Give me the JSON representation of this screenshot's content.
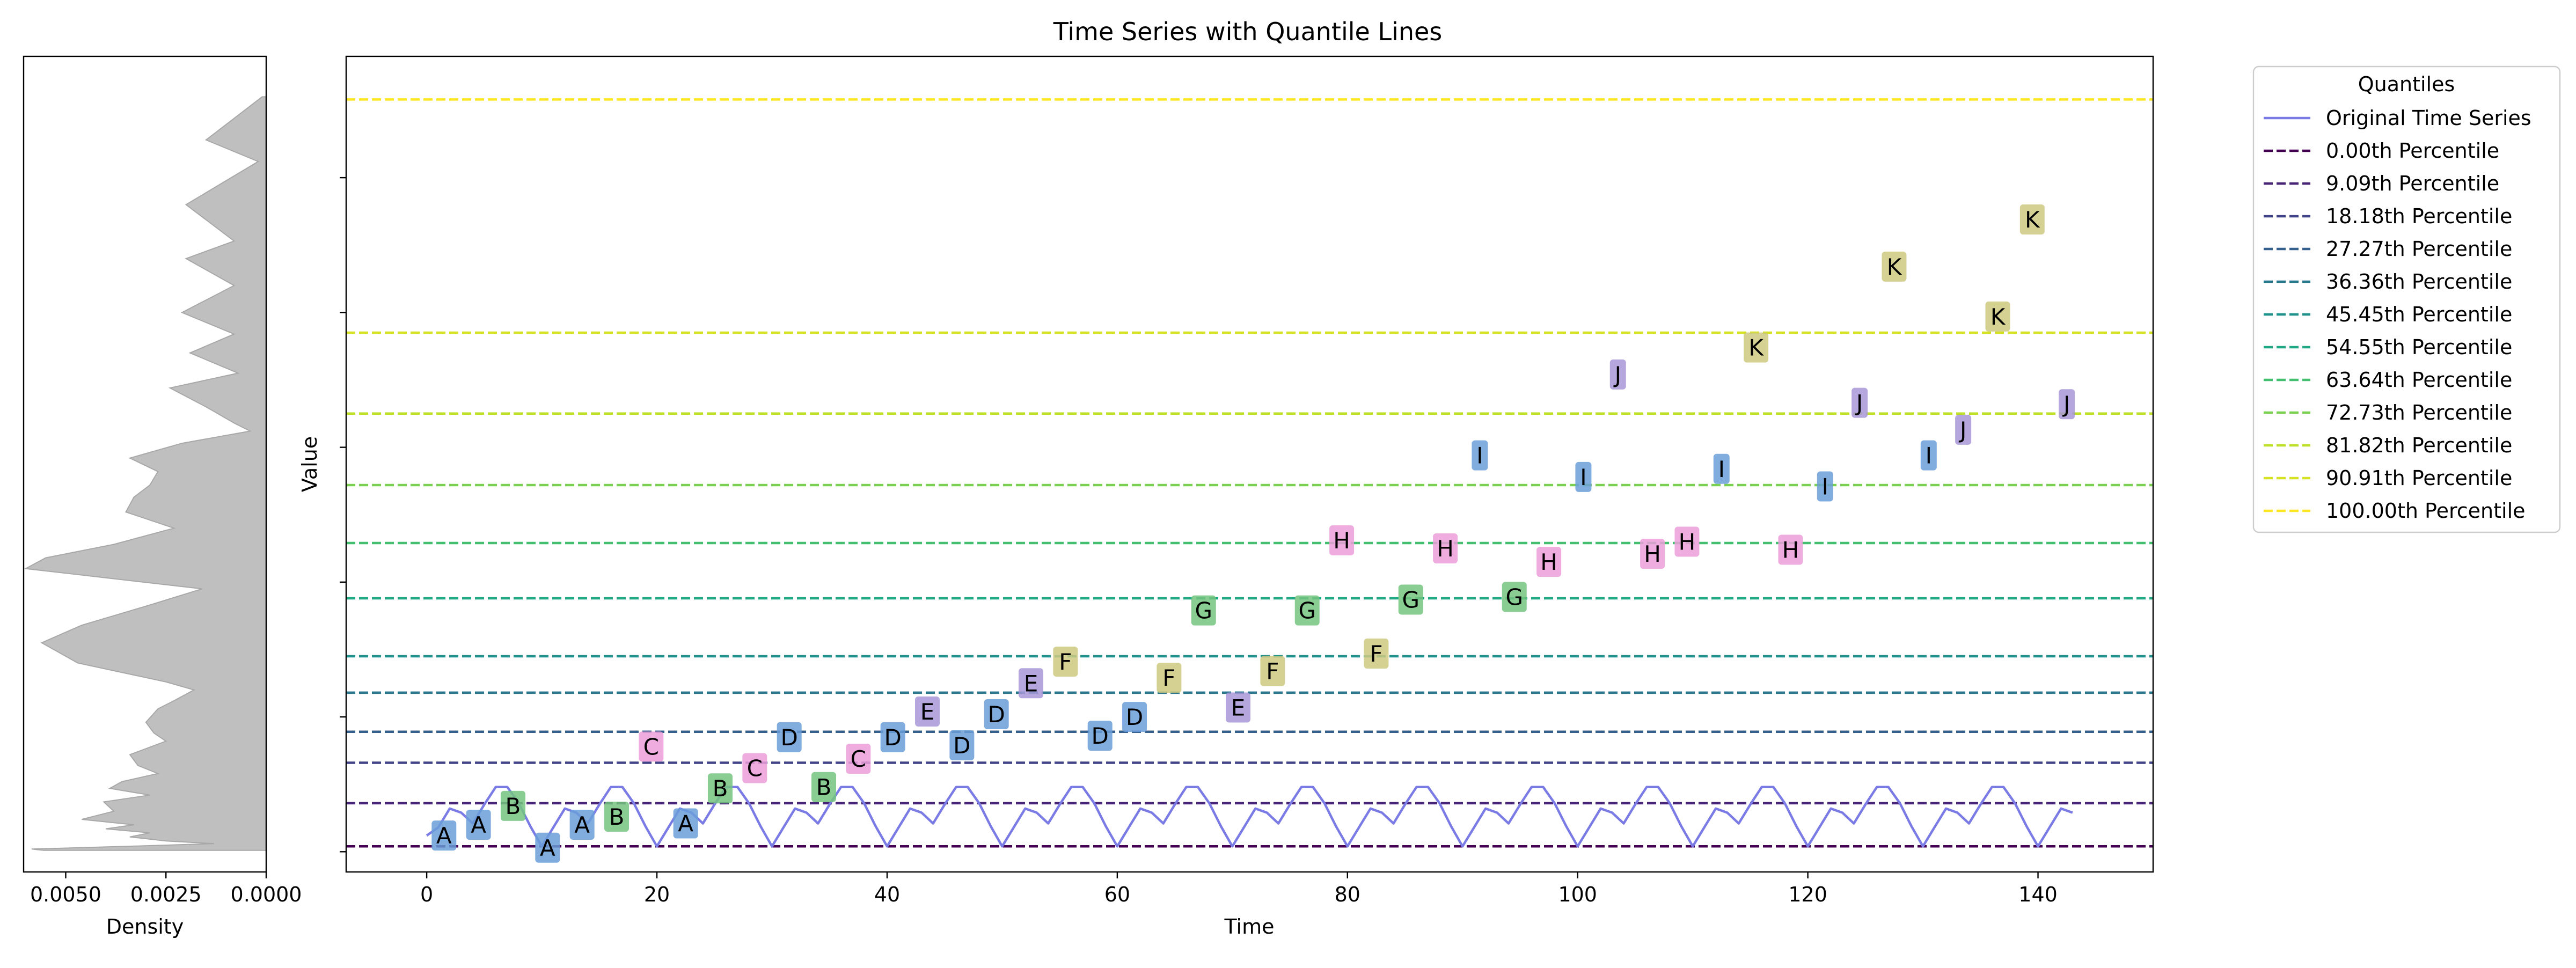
{
  "chart_data": [
    {
      "type": "area",
      "panel": "density-marginal",
      "xlabel": "Density",
      "ylabel": "",
      "x_ticks": [
        "0.0050",
        "0.0025",
        "0.0000"
      ],
      "x_tick_values": [
        0.005,
        0.0025,
        0.0
      ],
      "xlim": [
        0.00605,
        0.0
      ],
      "x_inverted": true,
      "fill_color": "#bfbfbf",
      "stroke_color": "#a8a8a8",
      "density": {
        "value": [
          101,
          102,
          104,
          106,
          108,
          111,
          114,
          117,
          120,
          124,
          130,
          137,
          142,
          147,
          152,
          158,
          164,
          172,
          182,
          188,
          196,
          206,
          212,
          220,
          226,
          240,
          255,
          268,
          283,
          295,
          310,
          318,
          328,
          340,
          352,
          363,
          372,
          382,
          392,
          403,
          412,
          418,
          430,
          444,
          455,
          470,
          484,
          500,
          520,
          540,
          553,
          580,
          612,
          628,
          660
        ],
        "density": [
          0.00555,
          0.00585,
          0.0035,
          0.0013,
          0.0025,
          0.0034,
          0.0029,
          0.004,
          0.0033,
          0.0046,
          0.0038,
          0.00405,
          0.0029,
          0.0039,
          0.0036,
          0.0027,
          0.0032,
          0.0034,
          0.0025,
          0.0028,
          0.003,
          0.0027,
          0.0023,
          0.0018,
          0.0025,
          0.0047,
          0.0056,
          0.0046,
          0.0029,
          0.0016,
          0.006,
          0.0055,
          0.0038,
          0.0023,
          0.0035,
          0.0033,
          0.0029,
          0.0027,
          0.0034,
          0.0021,
          0.0004,
          0.0008,
          0.0015,
          0.0024,
          0.0007,
          0.0019,
          0.0008,
          0.0021,
          0.0008,
          0.002,
          0.0008,
          0.002,
          0.0002,
          0.0015,
          0.0001
        ]
      }
    },
    {
      "type": "line",
      "panel": "main",
      "title": "Time Series with Quantile Lines",
      "xlabel": "Time",
      "ylabel": "Value",
      "xlim": [
        -7,
        150
      ],
      "ylim": [
        85,
        690
      ],
      "x_ticks": [
        0,
        20,
        40,
        60,
        80,
        100,
        120,
        140
      ],
      "y_ticks": [
        100,
        200,
        300,
        400,
        500,
        600
      ],
      "legend_title": "Quantiles",
      "legend_position": "outside-right",
      "series": [
        {
          "name": "Original Time Series",
          "color": "#7b7be6",
          "x": [
            0,
            1,
            2,
            3,
            4,
            5,
            6,
            7,
            8,
            9,
            10,
            11,
            12,
            13,
            14,
            15,
            16,
            17,
            18,
            19,
            20,
            21,
            22,
            23,
            24,
            25,
            26,
            27,
            28,
            29,
            30,
            31,
            32,
            33,
            34,
            35,
            36,
            37,
            38,
            39,
            40,
            41,
            42,
            43,
            44,
            45,
            46,
            47,
            48,
            49,
            50,
            51,
            52,
            53,
            54,
            55,
            56,
            57,
            58,
            59,
            60,
            61,
            62,
            63,
            64,
            65,
            66,
            67,
            68,
            69,
            70,
            71,
            72,
            73,
            74,
            75,
            76,
            77,
            78,
            79,
            80,
            81,
            82,
            83,
            84,
            85,
            86,
            87,
            88,
            89,
            90,
            91,
            92,
            93,
            94,
            95,
            96,
            97,
            98,
            99,
            100,
            101,
            102,
            103,
            104,
            105,
            106,
            107,
            108,
            109,
            110,
            111,
            112,
            113,
            114,
            115,
            116,
            117,
            118,
            119,
            120,
            121,
            122,
            123,
            124,
            125,
            126,
            127,
            128,
            129,
            130,
            131,
            132,
            133,
            134,
            135,
            136,
            137,
            138,
            139,
            140,
            141,
            142,
            143
          ],
          "values": [
            112,
            118,
            132,
            129,
            121,
            135,
            148,
            148,
            136,
            119,
            104,
            118,
            132,
            129,
            121,
            135,
            148,
            148,
            136,
            119,
            104,
            118,
            132,
            129,
            121,
            135,
            148,
            148,
            136,
            119,
            104,
            118,
            132,
            129,
            121,
            135,
            148,
            148,
            136,
            119,
            104,
            118,
            132,
            129,
            121,
            135,
            148,
            148,
            136,
            119,
            104,
            118,
            132,
            129,
            121,
            135,
            148,
            148,
            136,
            119,
            104,
            118,
            132,
            129,
            121,
            135,
            148,
            148,
            136,
            119,
            104,
            118,
            132,
            129,
            121,
            135,
            148,
            148,
            136,
            119,
            104,
            118,
            132,
            129,
            121,
            135,
            148,
            148,
            136,
            119,
            104,
            118,
            132,
            129,
            121,
            135,
            148,
            148,
            136,
            119,
            104,
            118,
            132,
            129,
            121,
            135,
            148,
            148,
            136,
            119,
            104,
            118,
            132,
            129,
            121,
            135,
            148,
            148,
            136,
            119,
            104,
            118,
            132,
            129,
            121,
            135,
            148,
            148,
            136,
            119,
            104,
            118,
            132,
            129,
            121,
            135,
            148,
            148,
            136,
            119,
            104,
            118,
            132,
            129
          ]
        }
      ],
      "quantiles": [
        {
          "name": "0.00th Percentile",
          "value": 104,
          "color": "#440154"
        },
        {
          "name": "9.09th Percentile",
          "value": 136,
          "color": "#482475"
        },
        {
          "name": "18.18th Percentile",
          "value": 166,
          "color": "#414487"
        },
        {
          "name": "27.27th Percentile",
          "value": 189,
          "color": "#355f8d"
        },
        {
          "name": "36.36th Percentile",
          "value": 218,
          "color": "#2a788e"
        },
        {
          "name": "45.45th Percentile",
          "value": 245,
          "color": "#21918c"
        },
        {
          "name": "54.55th Percentile",
          "value": 288,
          "color": "#22a884"
        },
        {
          "name": "63.64th Percentile",
          "value": 329,
          "color": "#44bf70"
        },
        {
          "name": "72.73th Percentile",
          "value": 372,
          "color": "#7ad151"
        },
        {
          "name": "81.82th Percentile",
          "value": 425,
          "color": "#bddf26"
        },
        {
          "name": "90.91th Percentile",
          "value": 485,
          "color": "#d6e226"
        },
        {
          "name": "100.00th Percentile",
          "value": 658,
          "color": "#fde725"
        }
      ],
      "annotations": [
        {
          "label": "A",
          "x": 1.5,
          "y": 112
        },
        {
          "label": "A",
          "x": 4.5,
          "y": 120
        },
        {
          "label": "B",
          "x": 7.5,
          "y": 134
        },
        {
          "label": "A",
          "x": 10.5,
          "y": 103
        },
        {
          "label": "A",
          "x": 13.5,
          "y": 120
        },
        {
          "label": "B",
          "x": 16.5,
          "y": 126
        },
        {
          "label": "C",
          "x": 19.5,
          "y": 178
        },
        {
          "label": "A",
          "x": 22.5,
          "y": 121
        },
        {
          "label": "B",
          "x": 25.5,
          "y": 147
        },
        {
          "label": "C",
          "x": 28.5,
          "y": 162
        },
        {
          "label": "D",
          "x": 31.5,
          "y": 185
        },
        {
          "label": "B",
          "x": 34.5,
          "y": 148
        },
        {
          "label": "C",
          "x": 37.5,
          "y": 169
        },
        {
          "label": "D",
          "x": 40.5,
          "y": 185
        },
        {
          "label": "E",
          "x": 43.5,
          "y": 204
        },
        {
          "label": "D",
          "x": 46.5,
          "y": 179
        },
        {
          "label": "D",
          "x": 49.5,
          "y": 202
        },
        {
          "label": "E",
          "x": 52.5,
          "y": 225
        },
        {
          "label": "F",
          "x": 55.5,
          "y": 241
        },
        {
          "label": "D",
          "x": 58.5,
          "y": 186
        },
        {
          "label": "D",
          "x": 61.5,
          "y": 200
        },
        {
          "label": "F",
          "x": 64.5,
          "y": 229
        },
        {
          "label": "G",
          "x": 67.5,
          "y": 279
        },
        {
          "label": "E",
          "x": 70.5,
          "y": 207
        },
        {
          "label": "F",
          "x": 73.5,
          "y": 234
        },
        {
          "label": "G",
          "x": 76.5,
          "y": 279
        },
        {
          "label": "H",
          "x": 79.5,
          "y": 331
        },
        {
          "label": "F",
          "x": 82.5,
          "y": 247
        },
        {
          "label": "G",
          "x": 85.5,
          "y": 287
        },
        {
          "label": "H",
          "x": 88.5,
          "y": 325
        },
        {
          "label": "I",
          "x": 91.5,
          "y": 394
        },
        {
          "label": "G",
          "x": 94.5,
          "y": 289
        },
        {
          "label": "H",
          "x": 97.5,
          "y": 315
        },
        {
          "label": "I",
          "x": 100.5,
          "y": 378
        },
        {
          "label": "J",
          "x": 103.5,
          "y": 454
        },
        {
          "label": "H",
          "x": 106.5,
          "y": 321
        },
        {
          "label": "H",
          "x": 109.5,
          "y": 330
        },
        {
          "label": "I",
          "x": 112.5,
          "y": 384
        },
        {
          "label": "K",
          "x": 115.5,
          "y": 474
        },
        {
          "label": "H",
          "x": 118.5,
          "y": 324
        },
        {
          "label": "I",
          "x": 121.5,
          "y": 371
        },
        {
          "label": "J",
          "x": 124.5,
          "y": 433
        },
        {
          "label": "K",
          "x": 127.5,
          "y": 534
        },
        {
          "label": "I",
          "x": 130.5,
          "y": 394
        },
        {
          "label": "J",
          "x": 133.5,
          "y": 413
        },
        {
          "label": "K",
          "x": 136.5,
          "y": 497
        },
        {
          "label": "K",
          "x": 139.5,
          "y": 569
        },
        {
          "label": "J",
          "x": 142.5,
          "y": 432
        }
      ],
      "annotation_colors": {
        "A": "#6a9fd8",
        "B": "#74c47f",
        "C": "#ec9fd9",
        "D": "#6a9fd8",
        "E": "#a898d8",
        "F": "#cdc980",
        "G": "#74c47f",
        "H": "#ec9fd9",
        "I": "#6a9fd8",
        "J": "#a898d8",
        "K": "#cdc980"
      }
    }
  ]
}
